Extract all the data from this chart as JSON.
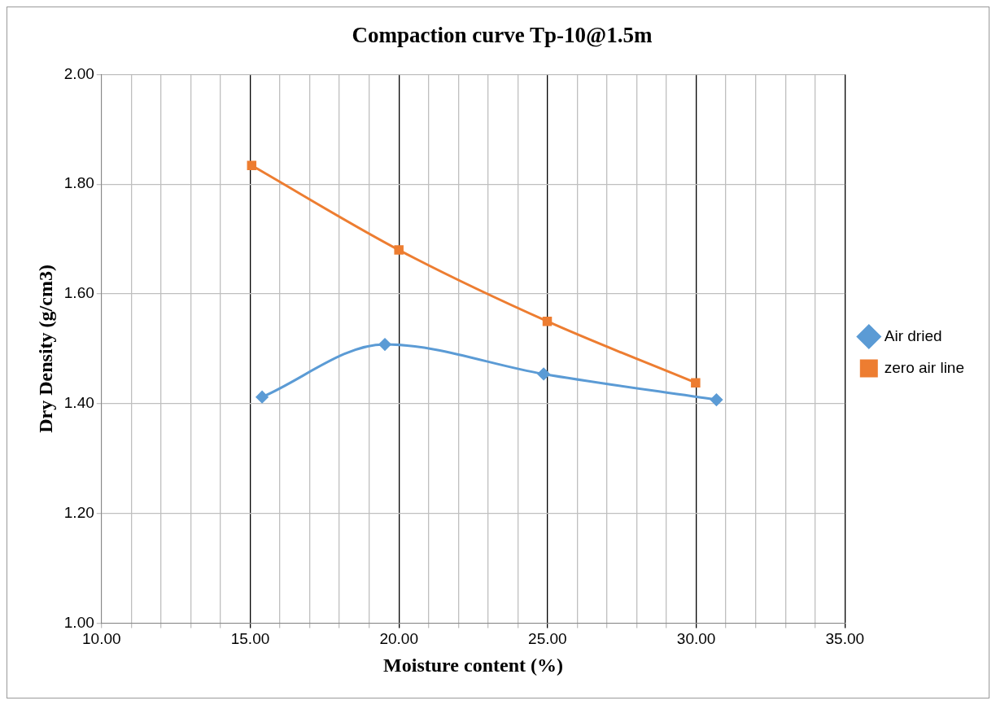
{
  "chart_data": {
    "type": "line",
    "title": "Compaction curve Tp-10@1.5m",
    "xlabel": "Moisture content (%)",
    "ylabel": "Dry Density (g/cm3)",
    "series": [
      {
        "name": "Air dried",
        "color": "#5b9bd5",
        "marker": "diamond",
        "x": [
          15.4,
          19.53,
          24.87,
          30.68
        ],
        "values": [
          1.412,
          1.508,
          1.454,
          1.407
        ]
      },
      {
        "name": "zero air line",
        "color": "#ed7d31",
        "marker": "square",
        "x": [
          15.05,
          20.0,
          24.99,
          29.98
        ],
        "values": [
          1.834,
          1.68,
          1.55,
          1.438
        ]
      }
    ],
    "xlim": [
      10,
      35
    ],
    "xticks": [
      {
        "value": 10,
        "label": "10.00"
      },
      {
        "value": 11,
        "label": null
      },
      {
        "value": 12,
        "label": null
      },
      {
        "value": 13,
        "label": null
      },
      {
        "value": 14,
        "label": null
      },
      {
        "value": 15,
        "label": "15.00"
      },
      {
        "value": 16,
        "label": null
      },
      {
        "value": 17,
        "label": null
      },
      {
        "value": 18,
        "label": null
      },
      {
        "value": 19,
        "label": null
      },
      {
        "value": 20,
        "label": "20.00"
      },
      {
        "value": 21,
        "label": null
      },
      {
        "value": 22,
        "label": null
      },
      {
        "value": 23,
        "label": null
      },
      {
        "value": 24,
        "label": null
      },
      {
        "value": 25,
        "label": "25.00"
      },
      {
        "value": 26,
        "label": null
      },
      {
        "value": 27,
        "label": null
      },
      {
        "value": 28,
        "label": null
      },
      {
        "value": 29,
        "label": null
      },
      {
        "value": 30,
        "label": "30.00"
      },
      {
        "value": 31,
        "label": null
      },
      {
        "value": 32,
        "label": null
      },
      {
        "value": 33,
        "label": null
      },
      {
        "value": 34,
        "label": null
      },
      {
        "value": 35,
        "label": "35.00"
      }
    ],
    "ylim": [
      1,
      2
    ],
    "yticks": [
      {
        "value": 1,
        "label": "1.00"
      },
      {
        "value": 1.2,
        "label": "1.20"
      },
      {
        "value": 1.4,
        "label": "1.40"
      },
      {
        "value": 1.6,
        "label": "1.60"
      },
      {
        "value": 1.8,
        "label": "1.80"
      },
      {
        "value": 2,
        "label": "2.00"
      }
    ],
    "grid": true,
    "legend": "right"
  }
}
